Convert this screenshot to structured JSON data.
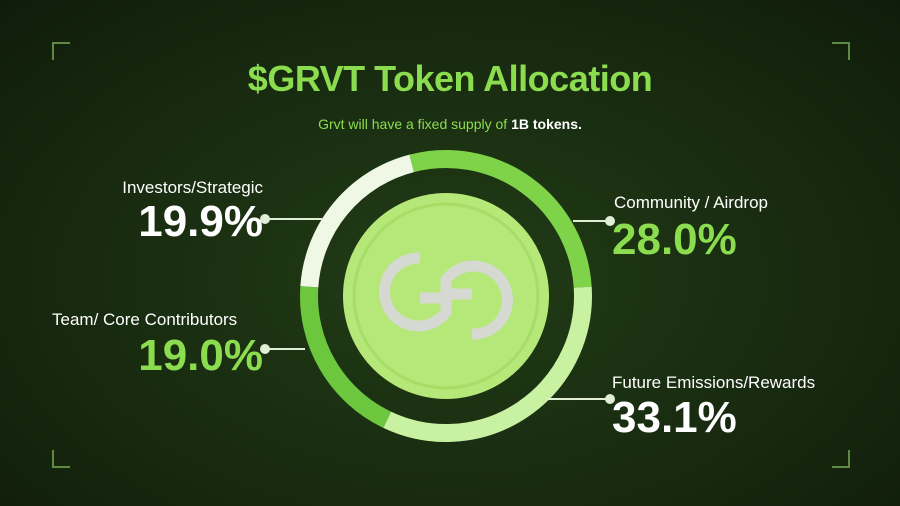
{
  "title": "$GRVT Token Allocation",
  "subtitle_prefix": "Grvt will have a fixed supply of ",
  "subtitle_bold": "1B tokens.",
  "colors": {
    "background": "#17290f",
    "accent": "#8bdc4f",
    "coin": "#b5e878"
  },
  "center_icon": "grvt-logo-coin",
  "chart_data": {
    "type": "pie",
    "donut": true,
    "start_angle_deg": -14.5,
    "direction": "clockwise",
    "slices": [
      {
        "label": "Community / Airdrop",
        "value": 28.0,
        "display": "28.0%",
        "color": "#7ed348"
      },
      {
        "label": "Future Emissions/Rewards",
        "value": 33.1,
        "display": "33.1%",
        "color": "#c9f1a2"
      },
      {
        "label": "Team/ Core Contributors",
        "value": 19.0,
        "display": "19.0%",
        "color": "#6cc63e"
      },
      {
        "label": "Investors/Strategic",
        "value": 19.9,
        "display": "19.9%",
        "color": "#eef8e4"
      }
    ]
  }
}
